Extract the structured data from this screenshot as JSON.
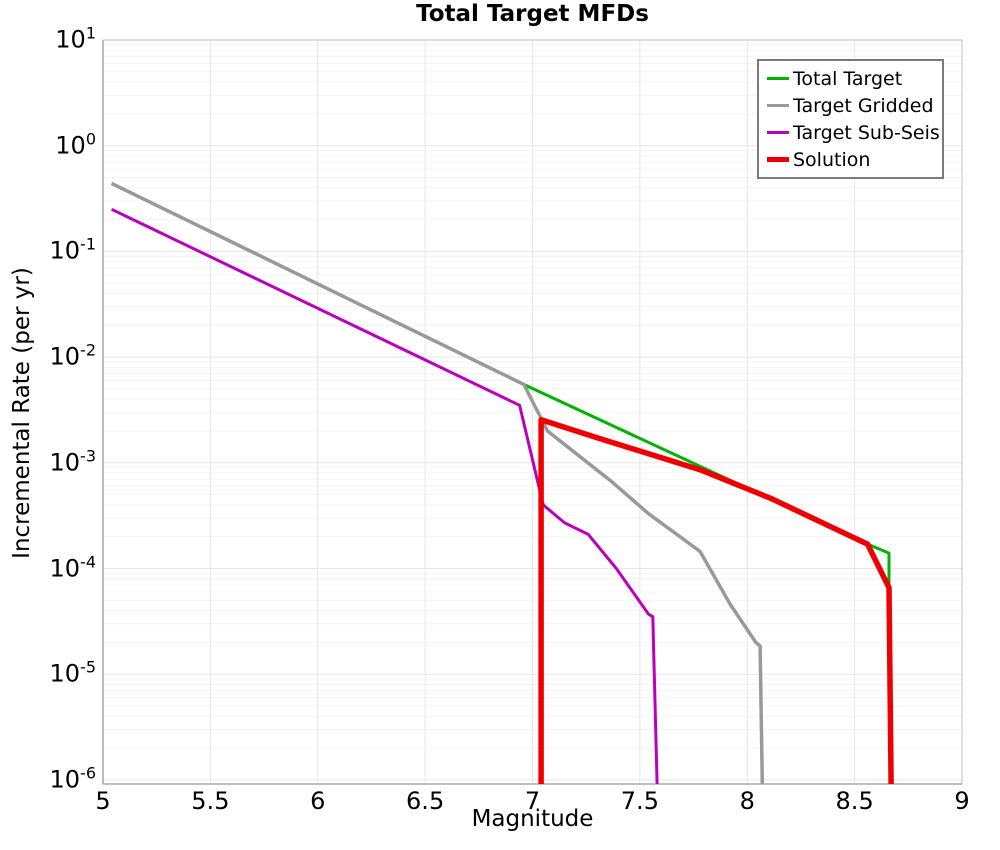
{
  "title": "Total Target MFDs",
  "chart_data": {
    "type": "line",
    "title": "Total Target MFDs",
    "xlabel": "Magnitude",
    "ylabel": "Incremental Rate (per yr)",
    "x_axis": {
      "min": 5,
      "max": 9,
      "ticks": [
        "5",
        "5.5",
        "6",
        "6.5",
        "7",
        "7.5",
        "8",
        "8.5",
        "9"
      ],
      "tick_values": [
        5,
        5.5,
        6,
        6.5,
        7,
        7.5,
        8,
        8.5,
        9
      ],
      "grid": true
    },
    "y_axis": {
      "scale": "log",
      "min": 1e-06,
      "max": 10,
      "tick_exponents": [
        1,
        0,
        -1,
        -2,
        -3,
        -4,
        -5,
        -6
      ],
      "grid": true,
      "minor_grid": true
    },
    "legend": {
      "position": "top-right",
      "entries": [
        "Total Target",
        "Target Gridded",
        "Target Sub-Seis",
        "Solution"
      ]
    },
    "series": [
      {
        "name": "Total Target",
        "color": "#00b300",
        "line_width": 3,
        "points": [
          [
            5.04,
            0.44
          ],
          [
            6.96,
            0.0055
          ],
          [
            8.56,
            0.00017
          ],
          [
            8.66,
            0.00014
          ],
          [
            8.66,
            7e-05
          ]
        ]
      },
      {
        "name": "Target Gridded",
        "color": "#999999",
        "line_width": 3.5,
        "points": [
          [
            5.04,
            0.44
          ],
          [
            6.96,
            0.0055
          ],
          [
            7.07,
            0.002
          ],
          [
            7.37,
            0.00066
          ],
          [
            7.54,
            0.00033
          ],
          [
            7.78,
            0.000145
          ],
          [
            7.92,
            4.6e-05
          ],
          [
            8.04,
            2e-05
          ],
          [
            8.06,
            1.85e-05
          ],
          [
            8.07,
            9e-07
          ]
        ]
      },
      {
        "name": "Target Sub-Seis",
        "color": "#bb00bb",
        "line_width": 3,
        "points": [
          [
            5.04,
            0.25
          ],
          [
            6.94,
            0.0035
          ],
          [
            7.05,
            0.0004
          ],
          [
            7.15,
            0.00027
          ],
          [
            7.26,
            0.00021
          ],
          [
            7.39,
            0.0001
          ],
          [
            7.54,
            3.7e-05
          ],
          [
            7.56,
            3.5e-05
          ],
          [
            7.58,
            9e-07
          ]
        ]
      },
      {
        "name": "Solution",
        "color": "#ee0000",
        "line_width": 5.5,
        "points": [
          [
            7.04,
            9e-07
          ],
          [
            7.04,
            0.00255
          ],
          [
            7.31,
            0.0017
          ],
          [
            7.78,
            0.00086
          ],
          [
            8.11,
            0.00046
          ],
          [
            8.56,
            0.00017
          ],
          [
            8.66,
            6.6e-05
          ],
          [
            8.67,
            9e-07
          ]
        ]
      }
    ],
    "layout": {
      "background": "#ffffff",
      "axis_color": "#aaaaaa",
      "frame_color": "#cccccc",
      "grid_major_color": "#e7e7e7",
      "grid_minor_color": "#f4f4f4",
      "legend_border_color": "#7a7a7a"
    }
  }
}
